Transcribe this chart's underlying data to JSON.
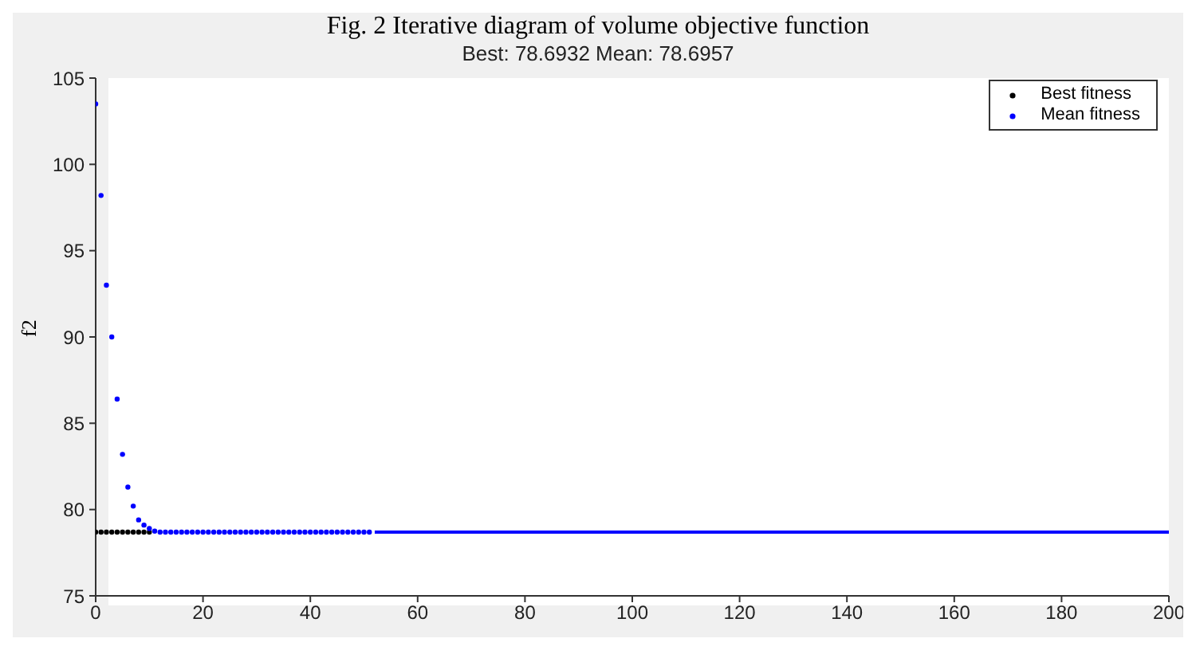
{
  "chart_data": {
    "type": "scatter",
    "title": "Fig. 2 Iterative diagram of volume objective function",
    "subtitle": "Best: 78.6932 Mean: 78.6957",
    "ylabel": "f2",
    "xlim": [
      0,
      200
    ],
    "xticks": [
      0,
      20,
      40,
      60,
      80,
      100,
      120,
      140,
      160,
      180,
      200
    ],
    "ylim": [
      75,
      105
    ],
    "yticks": [
      75,
      80,
      85,
      90,
      95,
      100,
      105
    ],
    "legend": "top right",
    "grid": false,
    "marker": "circle",
    "series": [
      {
        "name": "Best fitness",
        "color": "#000000",
        "x": [
          0,
          1,
          2,
          3,
          4,
          5,
          6,
          7,
          8,
          9,
          10
        ],
        "values": [
          78.6932,
          78.6932,
          78.6932,
          78.6932,
          78.6932,
          78.6932,
          78.6932,
          78.6932,
          78.6932,
          78.6932,
          78.6932
        ]
      },
      {
        "name": "Mean fitness",
        "color": "#0000ff",
        "x": [
          0,
          1,
          2,
          3,
          4,
          5,
          6,
          7,
          8,
          9,
          10,
          11,
          12,
          13,
          14,
          15,
          16,
          17,
          18,
          19,
          20,
          21,
          22,
          23,
          24,
          25,
          26,
          27,
          28,
          29,
          30,
          31,
          32,
          33,
          34,
          35,
          36,
          37,
          38,
          39,
          40,
          41,
          42,
          43,
          44,
          45,
          46,
          47,
          48,
          49,
          50,
          51
        ],
        "values": [
          103.5,
          98.2,
          93.0,
          90.0,
          86.4,
          83.2,
          81.3,
          80.2,
          79.4,
          79.1,
          78.9,
          78.75,
          78.6957,
          78.6957,
          78.6957,
          78.6957,
          78.6957,
          78.6957,
          78.6957,
          78.6957,
          78.6957,
          78.6957,
          78.6957,
          78.6957,
          78.6957,
          78.6957,
          78.6957,
          78.6957,
          78.6957,
          78.6957,
          78.6957,
          78.6957,
          78.6957,
          78.6957,
          78.6957,
          78.6957,
          78.6957,
          78.6957,
          78.6957,
          78.6957,
          78.6957,
          78.6957,
          78.6957,
          78.6957,
          78.6957,
          78.6957,
          78.6957,
          78.6957,
          78.6957,
          78.6957,
          78.6957,
          78.6957
        ]
      },
      {
        "type": "line",
        "color": "#0000ff",
        "marker": "none",
        "x": [
          52,
          200
        ],
        "values": [
          78.6957,
          78.6957
        ]
      }
    ]
  }
}
